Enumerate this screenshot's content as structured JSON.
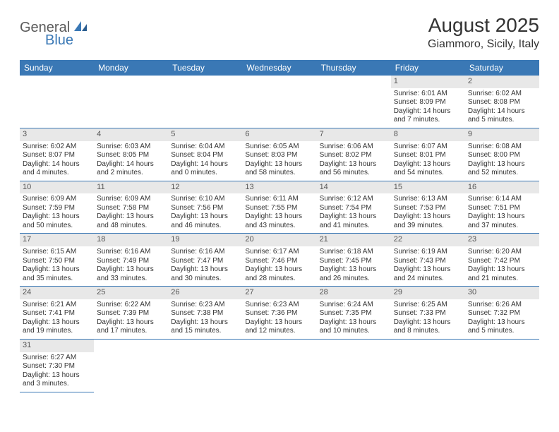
{
  "logo": {
    "text1": "General",
    "text2": "Blue"
  },
  "title": "August 2025",
  "location": "Giammoro, Sicily, Italy",
  "colors": {
    "header_bg": "#3a78b5",
    "header_fg": "#ffffff",
    "daynum_bg": "#e8e8e8",
    "border": "#3a78b5",
    "logo_gray": "#5a5a5a",
    "logo_blue": "#3a78b5"
  },
  "weekdays": [
    "Sunday",
    "Monday",
    "Tuesday",
    "Wednesday",
    "Thursday",
    "Friday",
    "Saturday"
  ],
  "weeks": [
    [
      null,
      null,
      null,
      null,
      null,
      {
        "n": "1",
        "sr": "Sunrise: 6:01 AM",
        "ss": "Sunset: 8:09 PM",
        "dl": "Daylight: 14 hours and 7 minutes."
      },
      {
        "n": "2",
        "sr": "Sunrise: 6:02 AM",
        "ss": "Sunset: 8:08 PM",
        "dl": "Daylight: 14 hours and 5 minutes."
      }
    ],
    [
      {
        "n": "3",
        "sr": "Sunrise: 6:02 AM",
        "ss": "Sunset: 8:07 PM",
        "dl": "Daylight: 14 hours and 4 minutes."
      },
      {
        "n": "4",
        "sr": "Sunrise: 6:03 AM",
        "ss": "Sunset: 8:05 PM",
        "dl": "Daylight: 14 hours and 2 minutes."
      },
      {
        "n": "5",
        "sr": "Sunrise: 6:04 AM",
        "ss": "Sunset: 8:04 PM",
        "dl": "Daylight: 14 hours and 0 minutes."
      },
      {
        "n": "6",
        "sr": "Sunrise: 6:05 AM",
        "ss": "Sunset: 8:03 PM",
        "dl": "Daylight: 13 hours and 58 minutes."
      },
      {
        "n": "7",
        "sr": "Sunrise: 6:06 AM",
        "ss": "Sunset: 8:02 PM",
        "dl": "Daylight: 13 hours and 56 minutes."
      },
      {
        "n": "8",
        "sr": "Sunrise: 6:07 AM",
        "ss": "Sunset: 8:01 PM",
        "dl": "Daylight: 13 hours and 54 minutes."
      },
      {
        "n": "9",
        "sr": "Sunrise: 6:08 AM",
        "ss": "Sunset: 8:00 PM",
        "dl": "Daylight: 13 hours and 52 minutes."
      }
    ],
    [
      {
        "n": "10",
        "sr": "Sunrise: 6:09 AM",
        "ss": "Sunset: 7:59 PM",
        "dl": "Daylight: 13 hours and 50 minutes."
      },
      {
        "n": "11",
        "sr": "Sunrise: 6:09 AM",
        "ss": "Sunset: 7:58 PM",
        "dl": "Daylight: 13 hours and 48 minutes."
      },
      {
        "n": "12",
        "sr": "Sunrise: 6:10 AM",
        "ss": "Sunset: 7:56 PM",
        "dl": "Daylight: 13 hours and 46 minutes."
      },
      {
        "n": "13",
        "sr": "Sunrise: 6:11 AM",
        "ss": "Sunset: 7:55 PM",
        "dl": "Daylight: 13 hours and 43 minutes."
      },
      {
        "n": "14",
        "sr": "Sunrise: 6:12 AM",
        "ss": "Sunset: 7:54 PM",
        "dl": "Daylight: 13 hours and 41 minutes."
      },
      {
        "n": "15",
        "sr": "Sunrise: 6:13 AM",
        "ss": "Sunset: 7:53 PM",
        "dl": "Daylight: 13 hours and 39 minutes."
      },
      {
        "n": "16",
        "sr": "Sunrise: 6:14 AM",
        "ss": "Sunset: 7:51 PM",
        "dl": "Daylight: 13 hours and 37 minutes."
      }
    ],
    [
      {
        "n": "17",
        "sr": "Sunrise: 6:15 AM",
        "ss": "Sunset: 7:50 PM",
        "dl": "Daylight: 13 hours and 35 minutes."
      },
      {
        "n": "18",
        "sr": "Sunrise: 6:16 AM",
        "ss": "Sunset: 7:49 PM",
        "dl": "Daylight: 13 hours and 33 minutes."
      },
      {
        "n": "19",
        "sr": "Sunrise: 6:16 AM",
        "ss": "Sunset: 7:47 PM",
        "dl": "Daylight: 13 hours and 30 minutes."
      },
      {
        "n": "20",
        "sr": "Sunrise: 6:17 AM",
        "ss": "Sunset: 7:46 PM",
        "dl": "Daylight: 13 hours and 28 minutes."
      },
      {
        "n": "21",
        "sr": "Sunrise: 6:18 AM",
        "ss": "Sunset: 7:45 PM",
        "dl": "Daylight: 13 hours and 26 minutes."
      },
      {
        "n": "22",
        "sr": "Sunrise: 6:19 AM",
        "ss": "Sunset: 7:43 PM",
        "dl": "Daylight: 13 hours and 24 minutes."
      },
      {
        "n": "23",
        "sr": "Sunrise: 6:20 AM",
        "ss": "Sunset: 7:42 PM",
        "dl": "Daylight: 13 hours and 21 minutes."
      }
    ],
    [
      {
        "n": "24",
        "sr": "Sunrise: 6:21 AM",
        "ss": "Sunset: 7:41 PM",
        "dl": "Daylight: 13 hours and 19 minutes."
      },
      {
        "n": "25",
        "sr": "Sunrise: 6:22 AM",
        "ss": "Sunset: 7:39 PM",
        "dl": "Daylight: 13 hours and 17 minutes."
      },
      {
        "n": "26",
        "sr": "Sunrise: 6:23 AM",
        "ss": "Sunset: 7:38 PM",
        "dl": "Daylight: 13 hours and 15 minutes."
      },
      {
        "n": "27",
        "sr": "Sunrise: 6:23 AM",
        "ss": "Sunset: 7:36 PM",
        "dl": "Daylight: 13 hours and 12 minutes."
      },
      {
        "n": "28",
        "sr": "Sunrise: 6:24 AM",
        "ss": "Sunset: 7:35 PM",
        "dl": "Daylight: 13 hours and 10 minutes."
      },
      {
        "n": "29",
        "sr": "Sunrise: 6:25 AM",
        "ss": "Sunset: 7:33 PM",
        "dl": "Daylight: 13 hours and 8 minutes."
      },
      {
        "n": "30",
        "sr": "Sunrise: 6:26 AM",
        "ss": "Sunset: 7:32 PM",
        "dl": "Daylight: 13 hours and 5 minutes."
      }
    ],
    [
      {
        "n": "31",
        "sr": "Sunrise: 6:27 AM",
        "ss": "Sunset: 7:30 PM",
        "dl": "Daylight: 13 hours and 3 minutes."
      },
      null,
      null,
      null,
      null,
      null,
      null
    ]
  ]
}
